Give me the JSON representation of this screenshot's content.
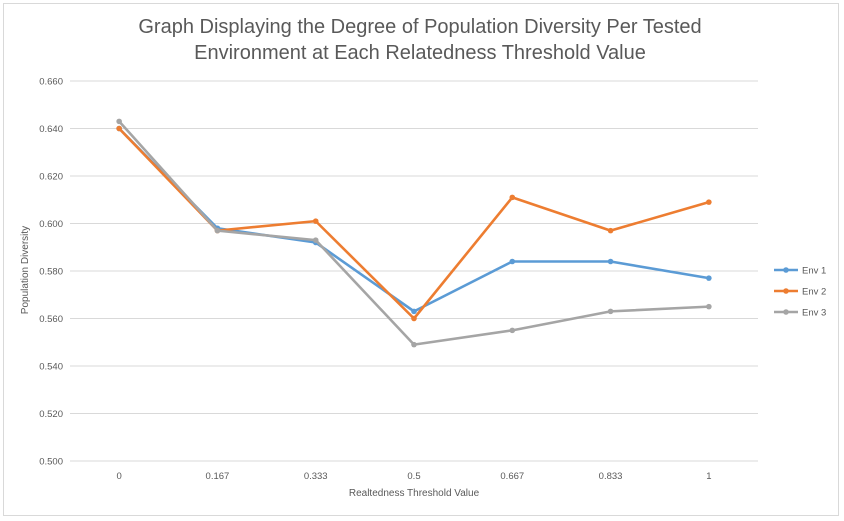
{
  "chart_data": {
    "type": "line",
    "title": "Graph Displaying the Degree of Population Diversity Per Tested Environment at Each Relatedness Threshold Value",
    "xlabel": "Realtedness Threshold Value",
    "ylabel": "Population Diversity",
    "categories": [
      "0",
      "0.167",
      "0.333",
      "0.5",
      "0.667",
      "0.833",
      "1"
    ],
    "ylim": [
      0.5,
      0.66
    ],
    "yticks": [
      "0.500",
      "0.520",
      "0.540",
      "0.560",
      "0.580",
      "0.600",
      "0.620",
      "0.640",
      "0.660"
    ],
    "ytick_values": [
      0.5,
      0.52,
      0.54,
      0.56,
      0.58,
      0.6,
      0.62,
      0.64,
      0.66
    ],
    "grid": true,
    "legend_position": "right",
    "series": [
      {
        "name": "Env 1",
        "color": "#5b9bd5",
        "values": [
          0.64,
          0.598,
          0.592,
          0.563,
          0.584,
          0.584,
          0.577
        ]
      },
      {
        "name": "Env 2",
        "color": "#ed7d31",
        "values": [
          0.64,
          0.597,
          0.601,
          0.56,
          0.611,
          0.597,
          0.609
        ]
      },
      {
        "name": "Env 3",
        "color": "#a5a5a5",
        "values": [
          0.643,
          0.597,
          0.593,
          0.549,
          0.555,
          0.563,
          0.565
        ]
      }
    ]
  }
}
